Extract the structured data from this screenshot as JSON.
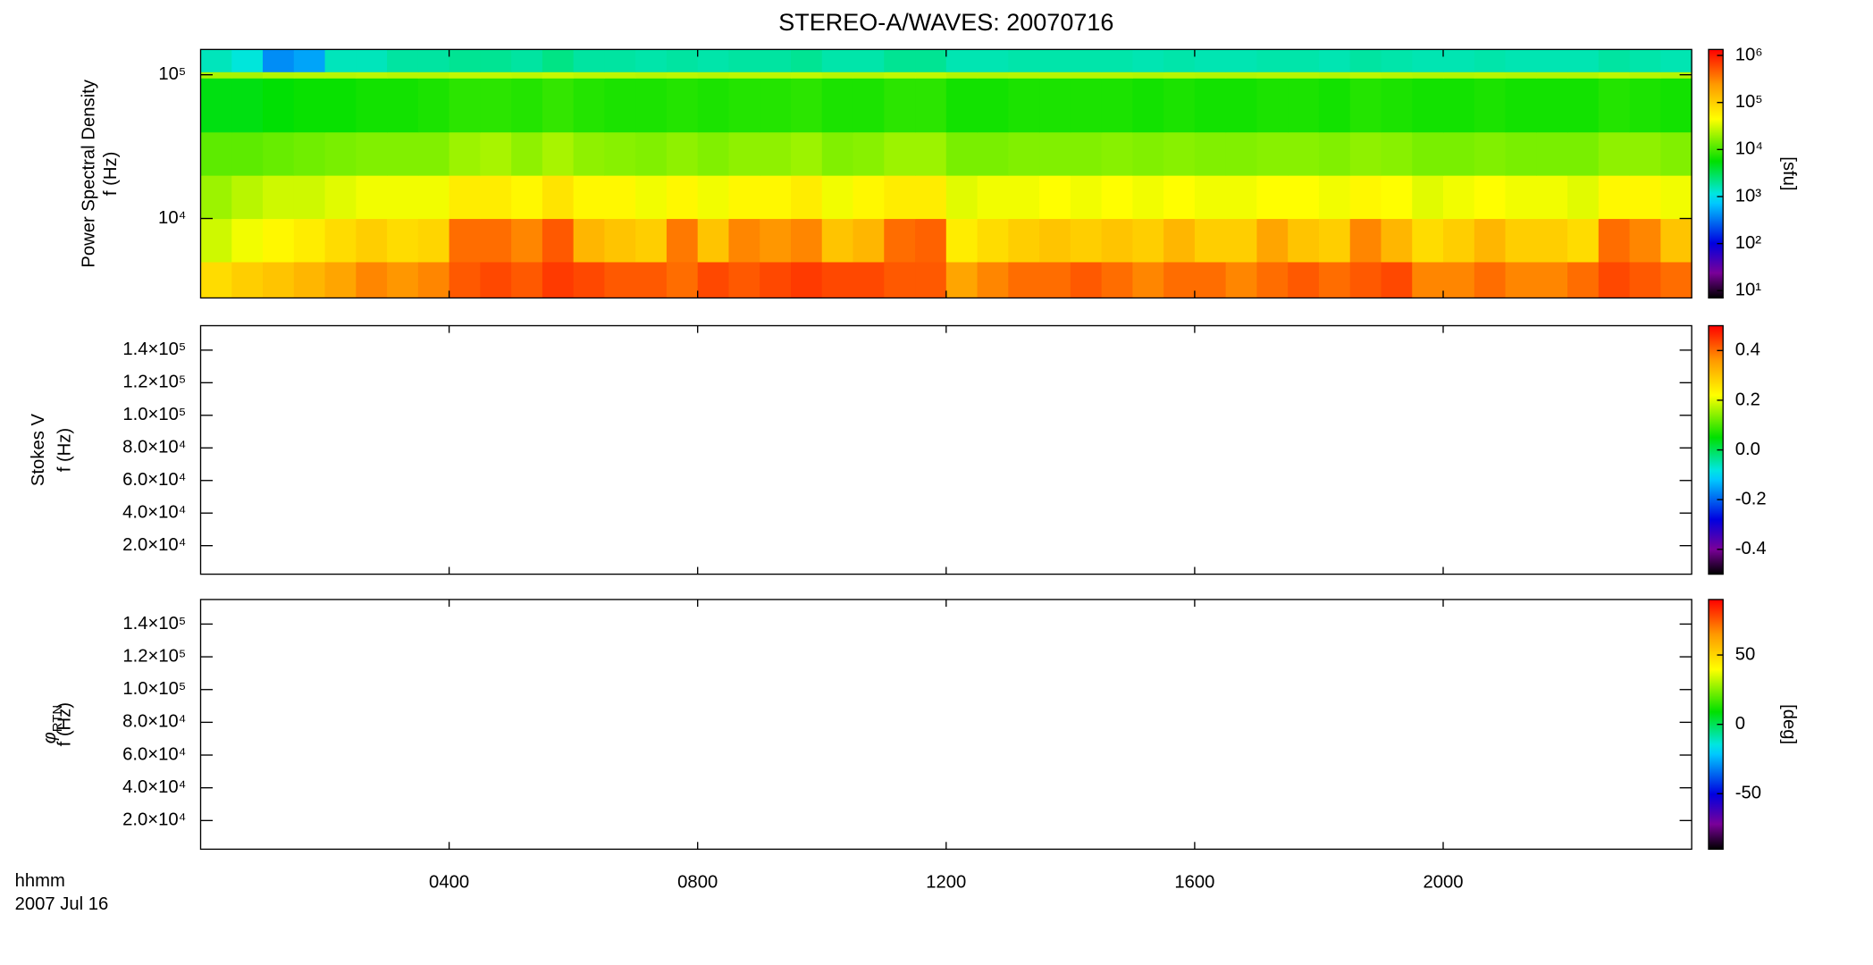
{
  "title": "STEREO-A/WAVES: 20070716",
  "xlabel": "hhmm",
  "date_label": "2007 Jul 16",
  "chart_data": [
    {
      "type": "heatmap",
      "colormap": "rainbow",
      "ylabel": "Power Spectral Density",
      "ylabel2": "f (Hz)",
      "ylog": true,
      "ylim": [
        2800,
        150000
      ],
      "yticks": [
        {
          "value": 10000,
          "label": "10⁴"
        },
        {
          "value": 100000,
          "label": "10⁵"
        }
      ],
      "xlim": [
        0,
        24
      ],
      "xticks": [
        4,
        8,
        12,
        16,
        20
      ],
      "xbins": [
        0,
        0.5,
        1,
        1.5,
        2,
        2.5,
        3,
        3.5,
        4,
        4.5,
        5,
        5.5,
        6,
        6.5,
        7,
        7.5,
        8,
        8.5,
        9,
        9.5,
        10,
        10.5,
        11,
        11.5,
        12,
        12.5,
        13,
        13.5,
        14,
        14.5,
        15,
        15.5,
        16,
        16.5,
        17,
        17.5,
        18,
        18.5,
        19,
        19.5,
        20,
        20.5,
        21,
        21.5,
        22,
        22.5,
        23,
        23.5,
        24
      ],
      "ybins": [
        2800,
        5000,
        10000,
        20000,
        40000,
        95000,
        105000,
        150000
      ],
      "values": [
        [
          80000,
          100000,
          120000,
          150000,
          200000,
          300000,
          250000,
          300000,
          500000,
          600000,
          500000,
          700000,
          600000,
          500000,
          500000,
          400000,
          600000,
          500000,
          600000,
          700000,
          600000,
          600000,
          500000,
          500000,
          200000,
          300000,
          400000,
          400000,
          500000,
          400000,
          300000,
          400000,
          400000,
          300000,
          400000,
          500000,
          400000,
          500000,
          600000,
          300000,
          300000,
          400000,
          300000,
          300000,
          400000,
          600000,
          500000,
          400000
        ],
        [
          30000,
          40000,
          50000,
          60000,
          80000,
          100000,
          80000,
          90000,
          400000,
          400000,
          300000,
          500000,
          150000,
          120000,
          100000,
          350000,
          120000,
          300000,
          250000,
          300000,
          120000,
          150000,
          400000,
          450000,
          60000,
          80000,
          100000,
          120000,
          100000,
          120000,
          100000,
          150000,
          100000,
          100000,
          200000,
          120000,
          100000,
          300000,
          150000,
          80000,
          100000,
          150000,
          100000,
          100000,
          80000,
          400000,
          300000,
          120000
        ],
        [
          20000,
          25000,
          30000,
          30000,
          35000,
          40000,
          40000,
          40000,
          60000,
          60000,
          50000,
          70000,
          50000,
          50000,
          40000,
          50000,
          40000,
          50000,
          50000,
          60000,
          40000,
          50000,
          60000,
          60000,
          35000,
          40000,
          40000,
          45000,
          40000,
          45000,
          40000,
          45000,
          40000,
          40000,
          45000,
          45000,
          40000,
          50000,
          45000,
          35000,
          40000,
          45000,
          40000,
          40000,
          35000,
          50000,
          50000,
          40000
        ],
        [
          12000,
          12000,
          13000,
          14000,
          15000,
          16000,
          16000,
          16000,
          20000,
          22000,
          18000,
          22000,
          18000,
          17000,
          16000,
          18000,
          16000,
          18000,
          18000,
          20000,
          16000,
          17000,
          20000,
          20000,
          15000,
          15000,
          16000,
          16000,
          16000,
          17000,
          16000,
          17000,
          16000,
          16000,
          17000,
          17000,
          16000,
          18000,
          17000,
          15000,
          15000,
          16000,
          15000,
          15000,
          15000,
          18000,
          18000,
          16000
        ],
        [
          5000,
          5000,
          5500,
          6000,
          6000,
          6500,
          6500,
          7000,
          8000,
          8000,
          7500,
          8500,
          7500,
          7000,
          7000,
          7500,
          7000,
          7500,
          7500,
          8000,
          7000,
          7000,
          8000,
          8000,
          6500,
          6500,
          7000,
          7000,
          7000,
          7000,
          6500,
          7000,
          6500,
          6500,
          7000,
          7000,
          6500,
          7500,
          7000,
          6500,
          6500,
          7000,
          6500,
          6500,
          6500,
          7500,
          7000,
          6500
        ],
        [
          22000,
          22000,
          24000,
          25000,
          25000,
          26000,
          25000,
          25000,
          27000,
          27000,
          26000,
          28000,
          26000,
          26000,
          25000,
          26000,
          25000,
          26000,
          26000,
          27000,
          25000,
          25000,
          27000,
          27000,
          24000,
          24000,
          25000,
          25000,
          25000,
          25000,
          24000,
          25000,
          24000,
          24000,
          25000,
          25000,
          24000,
          26000,
          25000,
          24000,
          24000,
          25000,
          24000,
          24000,
          24000,
          26000,
          25000,
          24000
        ],
        [
          1500,
          1200,
          400,
          500,
          1500,
          1500,
          1800,
          1800,
          2000,
          2000,
          1800,
          2200,
          1800,
          1800,
          1700,
          1800,
          1700,
          1800,
          1800,
          2000,
          1700,
          1700,
          2000,
          2000,
          1600,
          1600,
          1700,
          1700,
          1700,
          1700,
          1600,
          1700,
          1600,
          1600,
          1700,
          1700,
          1600,
          1800,
          1700,
          1600,
          1600,
          1700,
          1600,
          1600,
          1600,
          1800,
          1700,
          1600
        ]
      ],
      "zlog": true,
      "zlim": [
        7,
        1340000
      ],
      "zticks": [
        {
          "value": 10,
          "label": "10¹"
        },
        {
          "value": 100,
          "label": "10²"
        },
        {
          "value": 1000,
          "label": "10³"
        },
        {
          "value": 10000,
          "label": "10⁴"
        },
        {
          "value": 100000,
          "label": "10⁵"
        },
        {
          "value": 1000000,
          "label": "10⁶"
        }
      ],
      "zlabel": "[sfu]"
    },
    {
      "type": "heatmap",
      "colormap": "rainbow",
      "ylabel": "Stokes V",
      "ylabel2": "f (Hz)",
      "ylim": [
        2500,
        155000
      ],
      "yticks": [
        {
          "value": 20000,
          "label": "2.0×10⁴"
        },
        {
          "value": 40000,
          "label": "4.0×10⁴"
        },
        {
          "value": 60000,
          "label": "6.0×10⁴"
        },
        {
          "value": 80000,
          "label": "8.0×10⁴"
        },
        {
          "value": 100000,
          "label": "1.0×10⁵"
        },
        {
          "value": 120000,
          "label": "1.2×10⁵"
        },
        {
          "value": 140000,
          "label": "1.4×10⁵"
        }
      ],
      "xlim": [
        0,
        24
      ],
      "xticks": [
        4,
        8,
        12,
        16,
        20
      ],
      "zlim": [
        -0.5,
        0.5
      ],
      "zticks": [
        -0.4,
        -0.2,
        {
          "value": 0,
          "label": "0.0"
        },
        0.2,
        0.4
      ]
    },
    {
      "type": "heatmap",
      "colormap": "rainbow",
      "ylabel_symbol": "φ",
      "ylabel_subscript": "RTN",
      "ylabel2": "f (Hz)",
      "ylim": [
        2500,
        155000
      ],
      "yticks": [
        {
          "value": 20000,
          "label": "2.0×10⁴"
        },
        {
          "value": 40000,
          "label": "4.0×10⁴"
        },
        {
          "value": 60000,
          "label": "6.0×10⁴"
        },
        {
          "value": 80000,
          "label": "8.0×10⁴"
        },
        {
          "value": 100000,
          "label": "1.0×10⁵"
        },
        {
          "value": 120000,
          "label": "1.2×10⁵"
        },
        {
          "value": 140000,
          "label": "1.4×10⁵"
        }
      ],
      "xlim": [
        0,
        24
      ],
      "xticks": [
        {
          "value": 4,
          "label": "0400"
        },
        {
          "value": 8,
          "label": "0800"
        },
        {
          "value": 12,
          "label": "1200"
        },
        {
          "value": 16,
          "label": "1600"
        },
        {
          "value": 20,
          "label": "2000"
        }
      ],
      "zlim": [
        -90,
        90
      ],
      "zticks": [
        -50,
        0,
        50
      ],
      "zlabel": "[deg]"
    }
  ]
}
